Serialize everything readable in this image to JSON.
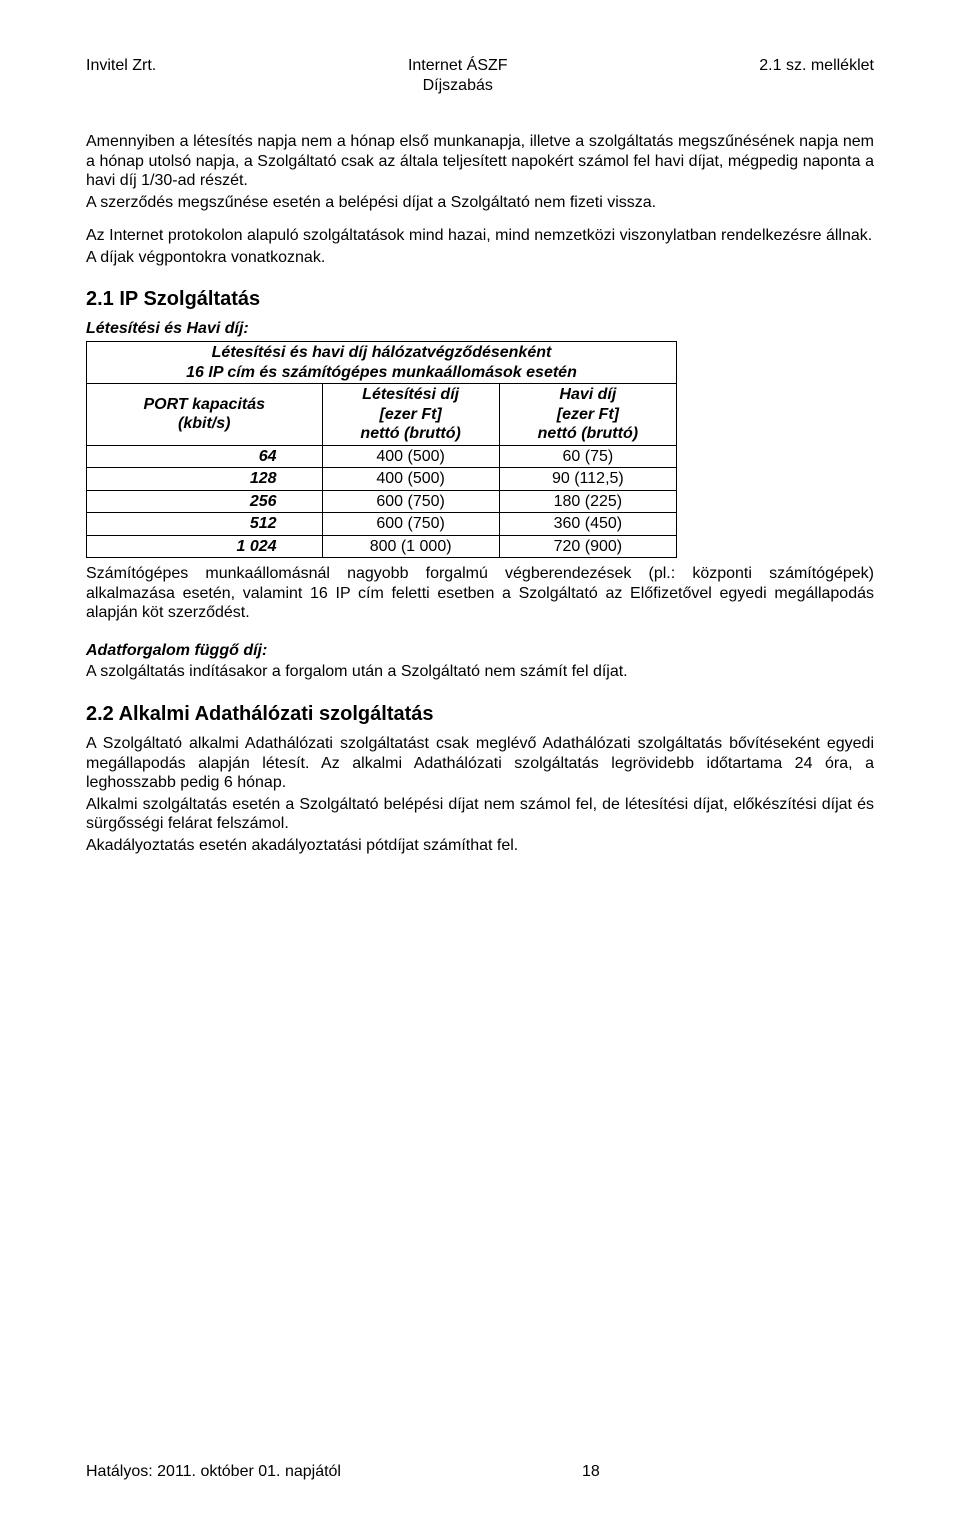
{
  "header": {
    "left": "Invitel Zrt.",
    "center_line1": "Internet ÁSZF",
    "center_line2": "Díjszabás",
    "right": "2.1 sz. melléklet"
  },
  "para1": "Amennyiben a létesítés napja nem a hónap első munkanapja, illetve a szolgáltatás megszűnésének napja nem a hónap utolsó napja, a Szolgáltató csak az általa teljesített napokért számol fel havi díjat, mégpedig naponta a havi díj 1/30-ad részét.",
  "para2": "A szerződés megszűnése esetén a belépési díjat a Szolgáltató nem fizeti vissza.",
  "para3a": "Az Internet protokolon alapuló szolgáltatások mind hazai, mind nemzetközi viszonylatban rendelkezésre állnak.",
  "para3b": "A díjak végpontokra vonatkoznak.",
  "section21_title": "2.1  IP Szolgáltatás",
  "subhead_fees": "Létesítési és Havi díj:",
  "table": {
    "top_merged_line1": "Létesítési és havi díj hálózatvégződésenként",
    "top_merged_line2": "16 IP cím és számítógépes munkaállomások esetén",
    "col_port_line1": "PORT kapacitás",
    "col_port_line2": "(kbit/s)",
    "col_setup_line1": "Létesítési díj",
    "col_setup_line2": "[ezer Ft]",
    "col_setup_line3": "nettó (bruttó)",
    "col_monthly_line1": "Havi díj",
    "col_monthly_line2": "[ezer Ft]",
    "col_monthly_line3": "nettó (bruttó)",
    "rows": [
      {
        "port": "64",
        "setup": "400  (500)",
        "monthly": "60 (75)"
      },
      {
        "port": "128",
        "setup": "400  (500)",
        "monthly": "90 (112,5)"
      },
      {
        "port": "256",
        "setup": "600  (750)",
        "monthly": "180 (225)"
      },
      {
        "port": "512",
        "setup": "600  (750)",
        "monthly": "360 (450)"
      },
      {
        "port": "1 024",
        "setup": "800 (1 000)",
        "monthly": "720 (900)"
      }
    ]
  },
  "para_after_table": "Számítógépes munkaállomásnál nagyobb forgalmú végberendezések (pl.: központi számítógépek) alkalmazása esetén, valamint 16 IP cím feletti esetben a Szolgáltató az Előfizetővel egyedi megállapodás alapján köt szerződést.",
  "subhead_traffic": "Adatforgalom függő díj:",
  "para_traffic": "A szolgáltatás indításakor a forgalom után a Szolgáltató nem számít fel díjat.",
  "section22_title": "2.2  Alkalmi Adathálózati szolgáltatás",
  "para22_1": "A Szolgáltató alkalmi Adathálózati szolgáltatást csak meglévő Adathálózati szolgáltatás bővítéseként egyedi megállapodás alapján létesít. Az alkalmi Adathálózati szolgáltatás legrövidebb időtartama 24 óra, a leghosszabb pedig 6 hónap.",
  "para22_2": "Alkalmi szolgáltatás esetén a Szolgáltató belépési díjat nem számol fel, de létesítési díjat, előkészítési díjat és sürgősségi felárat felszámol.",
  "para22_3": "Akadályoztatás esetén akadályoztatási pótdíjat számíthat fel.",
  "footer": {
    "left": "Hatályos: 2011. október 01. napjától",
    "page": "18"
  }
}
